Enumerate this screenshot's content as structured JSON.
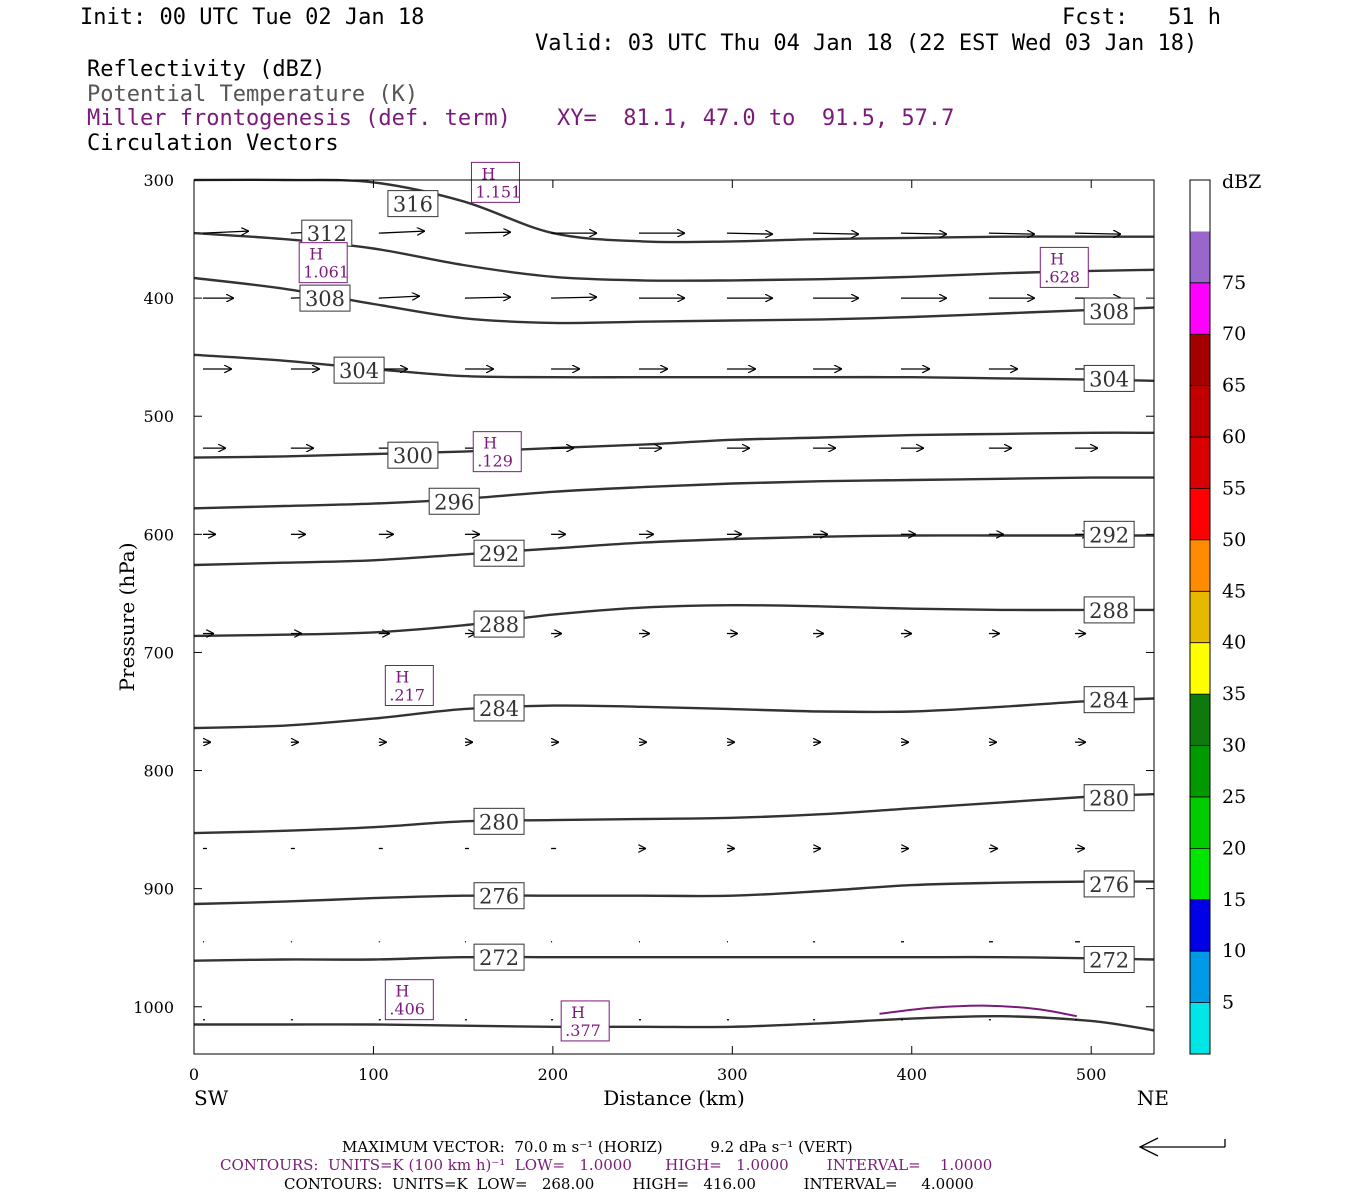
{
  "header": {
    "init": "Init: 00 UTC Tue 02 Jan 18",
    "fcst": "Fcst:   51 h",
    "valid": "Valid: 03 UTC Thu 04 Jan 18 (22 EST Wed 03 Jan 18)",
    "fields": [
      "Reflectivity (dBZ)",
      "Potential Temperature (K)",
      "Miller frontogenesis (def. term)",
      "Circulation Vectors"
    ],
    "xy": "XY=  81.1, 47.0 to  91.5, 57.7"
  },
  "colors": {
    "theta": "#333333",
    "front": "#7b1a7b",
    "vector": "#000000"
  },
  "chart_data": {
    "type": "line",
    "title": "",
    "xlabel": "Distance (km)",
    "ylabel": "Pressure (hPa)",
    "xlim": [
      0,
      535
    ],
    "ylim": [
      1040,
      300
    ],
    "x_ticks": [
      0,
      100,
      200,
      300,
      400,
      500
    ],
    "y_ticks": [
      300,
      400,
      500,
      600,
      700,
      800,
      900,
      1000
    ],
    "x_end_labels": {
      "left": "SW",
      "right": "NE"
    },
    "x_vals": [
      0,
      50,
      100,
      150,
      200,
      250,
      300,
      350,
      400,
      450,
      500,
      535
    ],
    "series": [
      {
        "name": "316",
        "p": [
          300,
          300,
          302,
          318,
          345,
          352,
          352,
          350,
          349,
          348,
          348,
          348
        ]
      },
      {
        "name": "312",
        "p": [
          345,
          350,
          358,
          372,
          382,
          385,
          385,
          384,
          382,
          379,
          377,
          376
        ]
      },
      {
        "name": "308",
        "p": [
          383,
          392,
          405,
          417,
          421,
          420,
          419,
          418,
          416,
          413,
          410,
          408
        ]
      },
      {
        "name": "304",
        "p": [
          448,
          453,
          460,
          466,
          467,
          467,
          467,
          467,
          467,
          468,
          469,
          470
        ]
      },
      {
        "name": "300",
        "p": [
          535,
          534,
          532,
          530,
          527,
          524,
          520,
          518,
          516,
          515,
          514,
          514
        ]
      },
      {
        "name": "296",
        "p": [
          578,
          576,
          574,
          570,
          564,
          560,
          557,
          555,
          554,
          553,
          552,
          552
        ]
      },
      {
        "name": "292",
        "p": [
          626,
          624,
          622,
          617,
          612,
          607,
          604,
          602,
          601,
          601,
          601,
          601
        ]
      },
      {
        "name": "288",
        "p": [
          686,
          685,
          683,
          677,
          668,
          662,
          660,
          661,
          663,
          664,
          664,
          664
        ]
      },
      {
        "name": "284",
        "p": [
          764,
          762,
          756,
          748,
          745,
          746,
          748,
          750,
          750,
          746,
          741,
          739
        ]
      },
      {
        "name": "280",
        "p": [
          853,
          851,
          848,
          843,
          842,
          841,
          840,
          837,
          832,
          827,
          822,
          820
        ]
      },
      {
        "name": "276",
        "p": [
          913,
          911,
          908,
          906,
          906,
          906,
          906,
          902,
          897,
          895,
          894,
          894
        ]
      },
      {
        "name": "272",
        "p": [
          961,
          960,
          960,
          958,
          958,
          958,
          958,
          958,
          958,
          958,
          959,
          960
        ]
      },
      {
        "name": "268",
        "p": [
          1015,
          1015,
          1015,
          1016,
          1017,
          1017,
          1017,
          1014,
          1010,
          1008,
          1012,
          1020
        ]
      }
    ],
    "theta_labels": [
      {
        "text": "316",
        "x": 122,
        "p": 320
      },
      {
        "text": "312",
        "x": 74,
        "p": 345
      },
      {
        "text": "308",
        "x": 73,
        "p": 400
      },
      {
        "text": "308",
        "x": 510,
        "p": 411
      },
      {
        "text": "304",
        "x": 92,
        "p": 461
      },
      {
        "text": "304",
        "x": 510,
        "p": 468
      },
      {
        "text": "300",
        "x": 122,
        "p": 533
      },
      {
        "text": "296",
        "x": 145,
        "p": 572
      },
      {
        "text": "292",
        "x": 170,
        "p": 616
      },
      {
        "text": "292",
        "x": 510,
        "p": 600
      },
      {
        "text": "288",
        "x": 170,
        "p": 676
      },
      {
        "text": "288",
        "x": 510,
        "p": 664
      },
      {
        "text": "284",
        "x": 170,
        "p": 747
      },
      {
        "text": "284",
        "x": 510,
        "p": 740
      },
      {
        "text": "280",
        "x": 170,
        "p": 843
      },
      {
        "text": "280",
        "x": 510,
        "p": 823
      },
      {
        "text": "276",
        "x": 170,
        "p": 906
      },
      {
        "text": "276",
        "x": 510,
        "p": 896
      },
      {
        "text": "272",
        "x": 170,
        "p": 958
      },
      {
        "text": "272",
        "x": 510,
        "p": 960
      }
    ],
    "front_markers": [
      {
        "label": "H",
        "value": "1.151",
        "x": 168,
        "p": 302
      },
      {
        "label": "H",
        "value": "1.061",
        "x": 72,
        "p": 370
      },
      {
        "label": "H",
        "value": ".628",
        "x": 485,
        "p": 374
      },
      {
        "label": "H",
        "value": ".129",
        "x": 169,
        "p": 530
      },
      {
        "label": "H",
        "value": ".217",
        "x": 120,
        "p": 728
      },
      {
        "label": "H",
        "value": ".406",
        "x": 120,
        "p": 994
      },
      {
        "label": "H",
        "value": ".377",
        "x": 218,
        "p": 1012
      }
    ],
    "front_contour": {
      "x": [
        382,
        410,
        440,
        470,
        492
      ],
      "p": [
        1006,
        1001,
        999,
        1002,
        1008
      ]
    },
    "vector_x": [
      5,
      54,
      103,
      151,
      199,
      248,
      297,
      345,
      394,
      443,
      491
    ],
    "vector_rows": [
      {
        "p": 345,
        "u": [
          45,
          45,
          45,
          45,
          45,
          45,
          45,
          45,
          45,
          45,
          45
        ],
        "v": [
          -2,
          -2,
          -2,
          -1,
          0,
          0,
          1,
          1,
          1,
          1,
          1
        ]
      },
      {
        "p": 400,
        "u": [
          30,
          30,
          40,
          45,
          45,
          45,
          45,
          45,
          45,
          45,
          45
        ],
        "v": [
          0,
          -1,
          -2,
          -1,
          -1,
          0,
          0,
          0,
          0,
          0,
          0
        ]
      },
      {
        "p": 460,
        "u": [
          28,
          28,
          28,
          28,
          28,
          28,
          28,
          28,
          28,
          28,
          28
        ],
        "v": [
          0,
          0,
          0,
          0,
          0,
          0,
          0,
          0,
          0,
          0,
          0
        ]
      },
      {
        "p": 527,
        "u": [
          22,
          22,
          22,
          22,
          22,
          22,
          22,
          22,
          22,
          22,
          22
        ],
        "v": [
          0,
          0,
          0,
          0,
          0,
          0,
          0,
          0,
          0,
          0,
          0
        ]
      },
      {
        "p": 600,
        "u": [
          12,
          14,
          14,
          14,
          14,
          14,
          14,
          14,
          14,
          14,
          14
        ],
        "v": [
          0,
          0,
          0,
          0,
          0,
          0,
          0,
          0,
          0,
          0,
          0
        ]
      },
      {
        "p": 684,
        "u": [
          10,
          10,
          10,
          10,
          10,
          10,
          10,
          10,
          10,
          10,
          10
        ],
        "v": [
          0,
          0,
          0,
          0,
          0,
          0,
          0,
          0,
          0,
          0,
          0
        ]
      },
      {
        "p": 776,
        "u": [
          7,
          7,
          7,
          7,
          7,
          7,
          7,
          7,
          7,
          7,
          10
        ],
        "v": [
          0,
          0,
          0,
          0,
          0,
          0,
          0,
          0,
          0,
          0,
          0
        ]
      },
      {
        "p": 866,
        "u": [
          4,
          4,
          4,
          4,
          5,
          6,
          7,
          7,
          7,
          8,
          9
        ],
        "v": [
          0,
          0,
          0,
          0,
          0,
          0,
          0,
          0,
          0,
          0,
          0
        ]
      },
      {
        "p": 945,
        "u": [
          1,
          1,
          1,
          1,
          1,
          1,
          1,
          2,
          3,
          4,
          5
        ],
        "v": [
          0,
          0,
          0,
          0,
          0,
          0,
          0,
          0,
          0,
          0,
          0
        ]
      },
      {
        "p": 1011,
        "u": [
          2,
          2,
          2,
          2,
          2,
          2,
          2,
          2,
          2,
          2,
          2
        ],
        "v": [
          0,
          0,
          0,
          0,
          0,
          0,
          0,
          0,
          0,
          0,
          0
        ]
      }
    ],
    "colorbar": {
      "unit": "dBZ",
      "ticks": [
        "5",
        "10",
        "15",
        "20",
        "25",
        "30",
        "35",
        "40",
        "45",
        "50",
        "55",
        "60",
        "65",
        "70",
        "75"
      ],
      "colors": [
        "#00e5e5",
        "#0099e6",
        "#0000e6",
        "#00e600",
        "#00cc00",
        "#009900",
        "#0e7a0e",
        "#ffff00",
        "#e6b800",
        "#ff8c00",
        "#ff0000",
        "#d90000",
        "#c00000",
        "#a50000",
        "#ff00ff",
        "#9966cc",
        "#ffffff"
      ]
    }
  },
  "footer": {
    "max_vector": "MAXIMUM VECTOR:  70.0 m s⁻¹ (HORIZ)          9.2 dPa s⁻¹ (VERT)",
    "contours_front": "CONTOURS:  UNITS=K (100 km h)⁻¹  LOW=   1.0000       HIGH=   1.0000        INTERVAL=    1.0000",
    "contours_theta": "CONTOURS:  UNITS=K  LOW=   268.00        HIGH=   416.00          INTERVAL=     4.0000"
  }
}
